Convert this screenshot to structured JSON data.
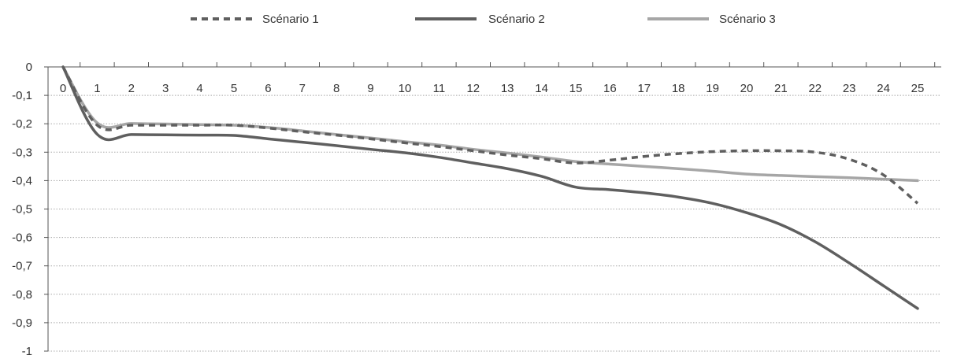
{
  "chart_data": {
    "type": "line",
    "x": [
      0,
      1,
      2,
      3,
      4,
      5,
      6,
      7,
      8,
      9,
      10,
      11,
      12,
      13,
      14,
      15,
      16,
      17,
      18,
      19,
      20,
      21,
      22,
      23,
      24,
      25
    ],
    "x_tick_labels": [
      "0",
      "1",
      "2",
      "3",
      "4",
      "5",
      "6",
      "7",
      "8",
      "9",
      "10",
      "11",
      "12",
      "13",
      "14",
      "15",
      "16",
      "17",
      "18",
      "19",
      "20",
      "21",
      "22",
      "23",
      "24",
      "25"
    ],
    "y_tick_labels": [
      "0",
      "-0,1",
      "-0,2",
      "-0,3",
      "-0,4",
      "-0,5",
      "-0,6",
      "-0,7",
      "-0,8",
      "-0,9",
      "-1"
    ],
    "y_ticks": [
      0,
      -0.1,
      -0.2,
      -0.3,
      -0.4,
      -0.5,
      -0.6,
      -0.7,
      -0.8,
      -0.9,
      -1
    ],
    "ylim": [
      -1,
      0
    ],
    "grid": "horizontal dotted",
    "legend_position": "top",
    "series": [
      {
        "name": "Scénario 1",
        "style": "dashed",
        "color": "#5f5f5f",
        "values": [
          0,
          -0.205,
          -0.205,
          -0.205,
          -0.205,
          -0.205,
          -0.215,
          -0.228,
          -0.24,
          -0.253,
          -0.267,
          -0.28,
          -0.295,
          -0.31,
          -0.323,
          -0.338,
          -0.328,
          -0.315,
          -0.305,
          -0.298,
          -0.295,
          -0.295,
          -0.3,
          -0.325,
          -0.38,
          -0.48
        ]
      },
      {
        "name": "Scénario 2",
        "style": "solid",
        "color": "#5f5f5f",
        "values": [
          0,
          -0.237,
          -0.238,
          -0.239,
          -0.24,
          -0.241,
          -0.253,
          -0.265,
          -0.277,
          -0.29,
          -0.302,
          -0.318,
          -0.338,
          -0.358,
          -0.385,
          -0.423,
          -0.432,
          -0.443,
          -0.458,
          -0.48,
          -0.513,
          -0.555,
          -0.615,
          -0.69,
          -0.77,
          -0.85
        ]
      },
      {
        "name": "Scénario 3",
        "style": "solid",
        "color": "#a6a6a6",
        "values": [
          0,
          -0.197,
          -0.199,
          -0.201,
          -0.203,
          -0.205,
          -0.213,
          -0.225,
          -0.238,
          -0.25,
          -0.263,
          -0.275,
          -0.29,
          -0.303,
          -0.317,
          -0.333,
          -0.342,
          -0.35,
          -0.358,
          -0.367,
          -0.377,
          -0.382,
          -0.386,
          -0.39,
          -0.395,
          -0.4
        ]
      }
    ]
  }
}
